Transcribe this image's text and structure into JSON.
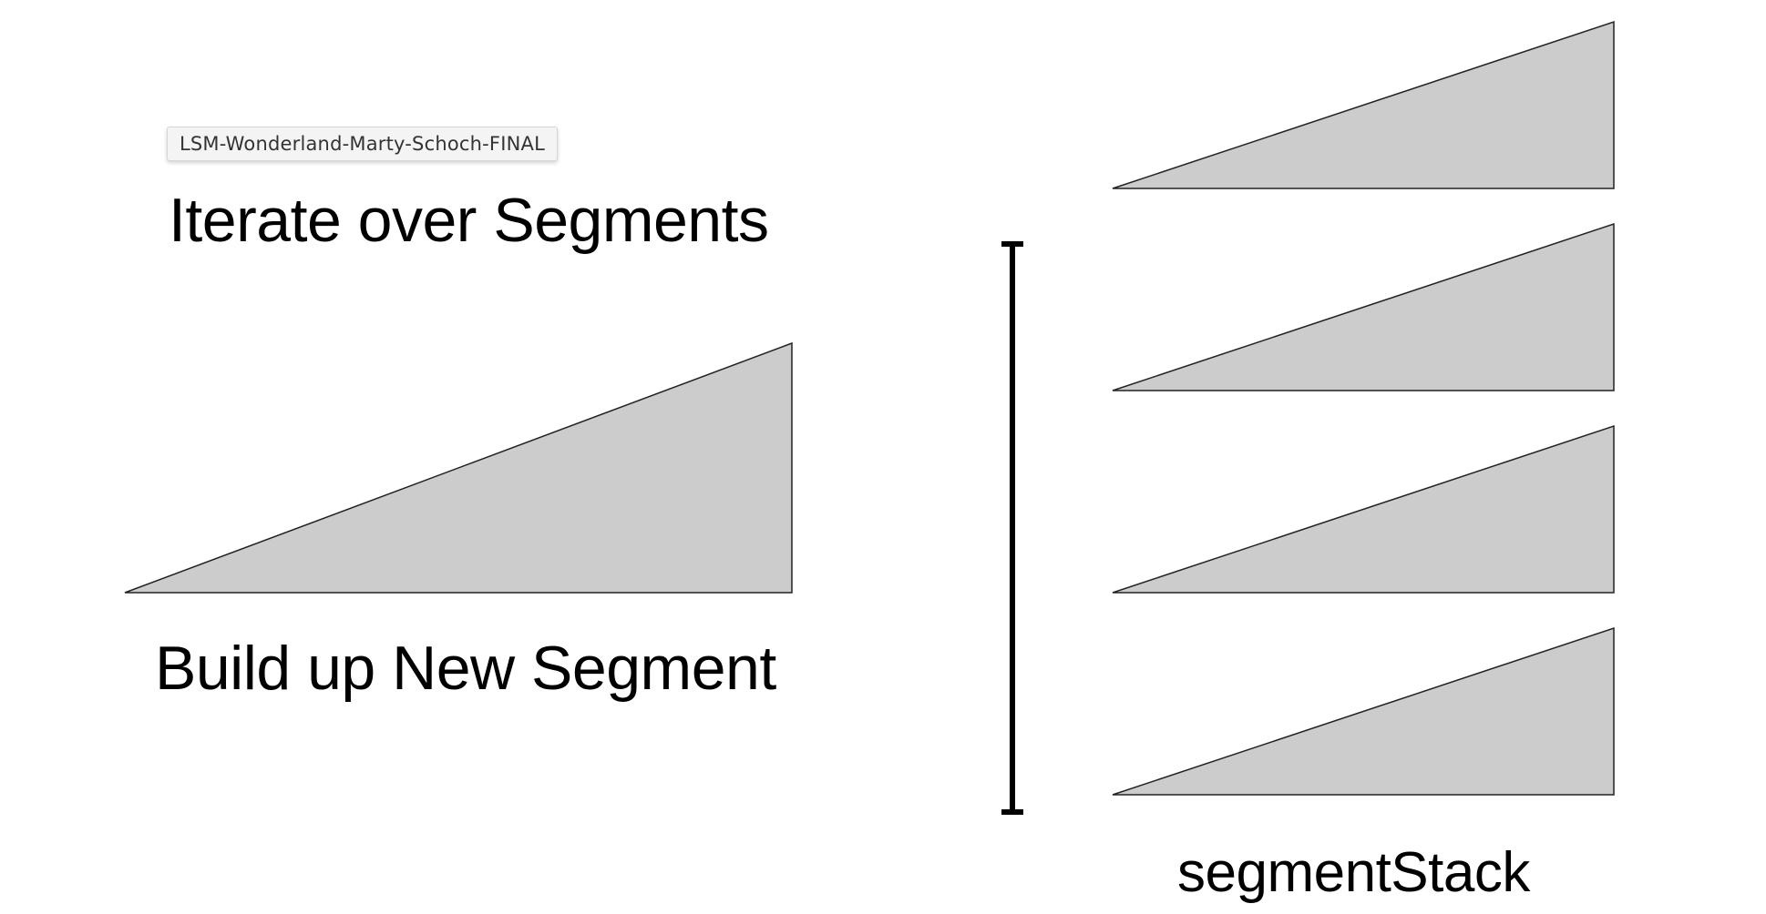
{
  "tooltip": {
    "text": "LSM-Wonderland-Marty-Schoch-FINAL"
  },
  "labels": {
    "iterate": "Iterate over Segments",
    "build": "Build up New Segment",
    "stack": "segmentStack"
  },
  "shapes": {
    "new_segment_icon": "wedge-shape",
    "stack_segment_icon": "wedge-shape",
    "bracket_icon": "vertical-bracket"
  },
  "colors": {
    "fill": "#cccccc",
    "stroke": "#222222",
    "text": "#000000"
  }
}
